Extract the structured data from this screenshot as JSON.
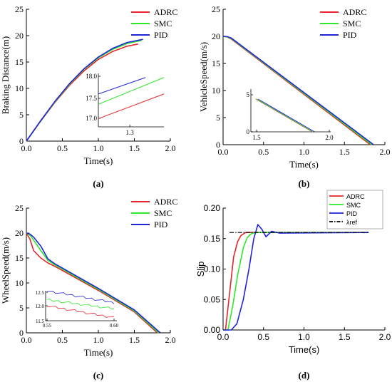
{
  "colors": {
    "ADRC": "#e8242a",
    "SMC": "#2ee82a",
    "PID": "#1f24d8",
    "ref": "#000000"
  },
  "chart_data": [
    {
      "id": "a",
      "type": "line",
      "panel_label": "(a)",
      "xlabel": "Time(s)",
      "ylabel": "Braking Distance(m)",
      "xlim": [
        0,
        2
      ],
      "ylim": [
        0,
        25
      ],
      "xticks": [
        "0.0",
        "0.5",
        "1.0",
        "1.5",
        "2.0"
      ],
      "yticks": [
        "0",
        "5",
        "10",
        "15",
        "20",
        "25"
      ],
      "legend": [
        "ADRC",
        "SMC",
        "PID"
      ],
      "series": [
        {
          "name": "ADRC",
          "x": [
            0,
            0.2,
            0.4,
            0.6,
            0.8,
            1.0,
            1.2,
            1.4,
            1.55
          ],
          "y": [
            0,
            3.8,
            7.4,
            10.6,
            13.3,
            15.5,
            17.0,
            18.0,
            18.4
          ]
        },
        {
          "name": "SMC",
          "x": [
            0,
            0.2,
            0.4,
            0.6,
            0.8,
            1.0,
            1.2,
            1.4,
            1.6
          ],
          "y": [
            0,
            3.85,
            7.5,
            10.8,
            13.6,
            15.8,
            17.4,
            18.5,
            19.1
          ]
        },
        {
          "name": "PID",
          "x": [
            0,
            0.2,
            0.4,
            0.6,
            0.8,
            1.0,
            1.2,
            1.4,
            1.62
          ],
          "y": [
            0,
            3.9,
            7.6,
            10.9,
            13.7,
            15.95,
            17.6,
            18.7,
            19.3
          ]
        }
      ],
      "inset": {
        "xticks": [
          "1.3"
        ],
        "yticks": [
          "17.0",
          "17.5",
          "18.0"
        ],
        "ylim": [
          16.8,
          18.1
        ],
        "series": [
          {
            "name": "ADRC",
            "y": [
              17.0,
              17.6
            ]
          },
          {
            "name": "SMC",
            "y": [
              17.35,
              18.0
            ]
          },
          {
            "name": "PID",
            "y": [
              17.6,
              18.0
            ]
          }
        ]
      }
    },
    {
      "id": "b",
      "type": "line",
      "panel_label": "(b)",
      "xlabel": "Time(s)",
      "ylabel": "VehicleSpeed(m/s)",
      "xlim": [
        0,
        2
      ],
      "ylim": [
        0,
        25
      ],
      "xticks": [
        "0.0",
        "0.5",
        "1.0",
        "1.5",
        "2.0"
      ],
      "yticks": [
        "0",
        "5",
        "10",
        "15",
        "20",
        "25"
      ],
      "legend": [
        "ADRC",
        "SMC",
        "PID"
      ],
      "series": [
        {
          "name": "ADRC",
          "x": [
            0,
            0.05,
            0.1,
            1.82
          ],
          "y": [
            20,
            19.9,
            19.5,
            0
          ]
        },
        {
          "name": "SMC",
          "x": [
            0,
            0.05,
            0.1,
            1.84
          ],
          "y": [
            20,
            19.9,
            19.6,
            0
          ]
        },
        {
          "name": "PID",
          "x": [
            0,
            0.05,
            0.1,
            1.86
          ],
          "y": [
            20,
            19.95,
            19.7,
            0
          ]
        }
      ],
      "inset": {
        "xticks": [
          "1.5",
          "2.0"
        ],
        "yticks": [
          "0",
          "5"
        ],
        "series": [
          {
            "name": "ADRC"
          },
          {
            "name": "SMC"
          },
          {
            "name": "PID"
          }
        ]
      }
    },
    {
      "id": "c",
      "type": "line",
      "panel_label": "(c)",
      "xlabel": "Time(s)",
      "ylabel": "WheelSpeed(m/s)",
      "xlim": [
        0,
        2
      ],
      "ylim": [
        0,
        25
      ],
      "xticks": [
        "0.0",
        "0.5",
        "1.0",
        "1.5",
        "2.0"
      ],
      "yticks": [
        "0",
        "5",
        "10",
        "15",
        "20",
        "25"
      ],
      "legend": [
        "ADRC",
        "SMC",
        "PID"
      ],
      "series": [
        {
          "name": "ADRC",
          "x": [
            0,
            0.05,
            0.1,
            0.2,
            0.3,
            0.4,
            1.0,
            1.5,
            1.82
          ],
          "y": [
            20,
            18.8,
            16.5,
            15.0,
            14.0,
            13.3,
            8.5,
            4.2,
            0
          ]
        },
        {
          "name": "SMC",
          "x": [
            0,
            0.05,
            0.1,
            0.2,
            0.3,
            0.4,
            1.0,
            1.5,
            1.84
          ],
          "y": [
            20,
            19.6,
            18.6,
            16.5,
            14.5,
            13.6,
            8.7,
            4.4,
            0
          ]
        },
        {
          "name": "PID",
          "x": [
            0,
            0.05,
            0.1,
            0.2,
            0.3,
            0.4,
            1.0,
            1.5,
            1.86
          ],
          "y": [
            20,
            19.8,
            19.2,
            17.4,
            14.8,
            13.8,
            8.9,
            4.6,
            0
          ]
        }
      ],
      "inset": {
        "xticks": [
          "0.55",
          "0.60"
        ],
        "yticks": [
          "11.5",
          "12.0",
          "12.5"
        ],
        "series": [
          {
            "name": "ADRC",
            "y": [
              12.0,
              11.6
            ]
          },
          {
            "name": "SMC",
            "y": [
              12.2,
              11.9
            ]
          },
          {
            "name": "PID",
            "y": [
              12.5,
              12.1
            ]
          }
        ]
      }
    },
    {
      "id": "d",
      "type": "line",
      "panel_label": "(d)",
      "xlabel": "Time(s)",
      "ylabel": "Slip",
      "xlim": [
        0,
        2
      ],
      "ylim": [
        0,
        0.2
      ],
      "xticks": [
        "0.0",
        "0.5",
        "1.0",
        "1.5",
        "2.0"
      ],
      "yticks": [
        "0.00",
        "0.05",
        "0.10",
        "0.15",
        "0.20"
      ],
      "legend": [
        "ADRC",
        "SMC",
        "PID",
        "λref"
      ],
      "series": [
        {
          "name": "ADRC",
          "x": [
            0,
            0.03,
            0.08,
            0.13,
            0.18,
            0.22,
            0.28,
            0.35,
            1.8
          ],
          "y": [
            0,
            0.0,
            0.06,
            0.12,
            0.145,
            0.155,
            0.16,
            0.16,
            0.16
          ]
        },
        {
          "name": "SMC",
          "x": [
            0,
            0.06,
            0.12,
            0.18,
            0.25,
            0.3,
            0.35,
            0.4,
            1.8
          ],
          "y": [
            0,
            0.0,
            0.04,
            0.09,
            0.135,
            0.152,
            0.158,
            0.16,
            0.16
          ]
        },
        {
          "name": "PID",
          "x": [
            0,
            0.1,
            0.17,
            0.25,
            0.32,
            0.38,
            0.43,
            0.48,
            0.53,
            0.6,
            0.7,
            1.8
          ],
          "y": [
            0,
            0.0,
            0.01,
            0.05,
            0.1,
            0.15,
            0.173,
            0.165,
            0.153,
            0.162,
            0.159,
            0.16
          ]
        },
        {
          "name": "λref",
          "x": [
            0.08,
            1.8
          ],
          "y": [
            0.16,
            0.16
          ]
        }
      ]
    }
  ]
}
